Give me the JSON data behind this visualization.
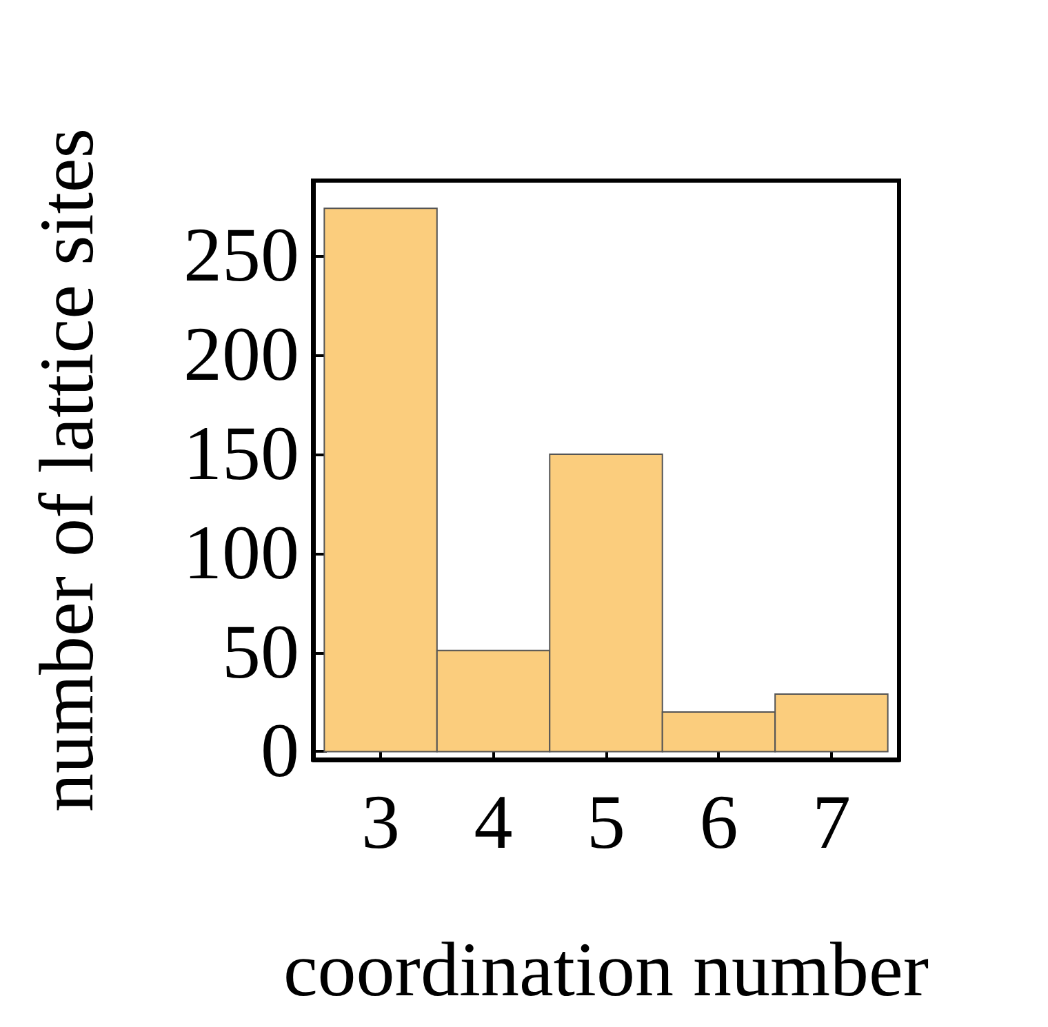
{
  "chart_data": {
    "type": "histogram",
    "xlabel": "coordination number",
    "ylabel": "number of lattice sites",
    "bins": [
      2.5,
      3.5,
      4.5,
      5.5,
      6.5,
      7.5
    ],
    "values": [
      274,
      51,
      150,
      20,
      29
    ],
    "color": "#fbcd7d",
    "xlim": [
      2.4,
      7.6
    ],
    "ylim": [
      -4,
      288
    ],
    "xticks": [
      3,
      4,
      5,
      6,
      7
    ],
    "yticks": [
      0,
      50,
      100,
      150,
      200,
      250
    ],
    "grid": false
  }
}
